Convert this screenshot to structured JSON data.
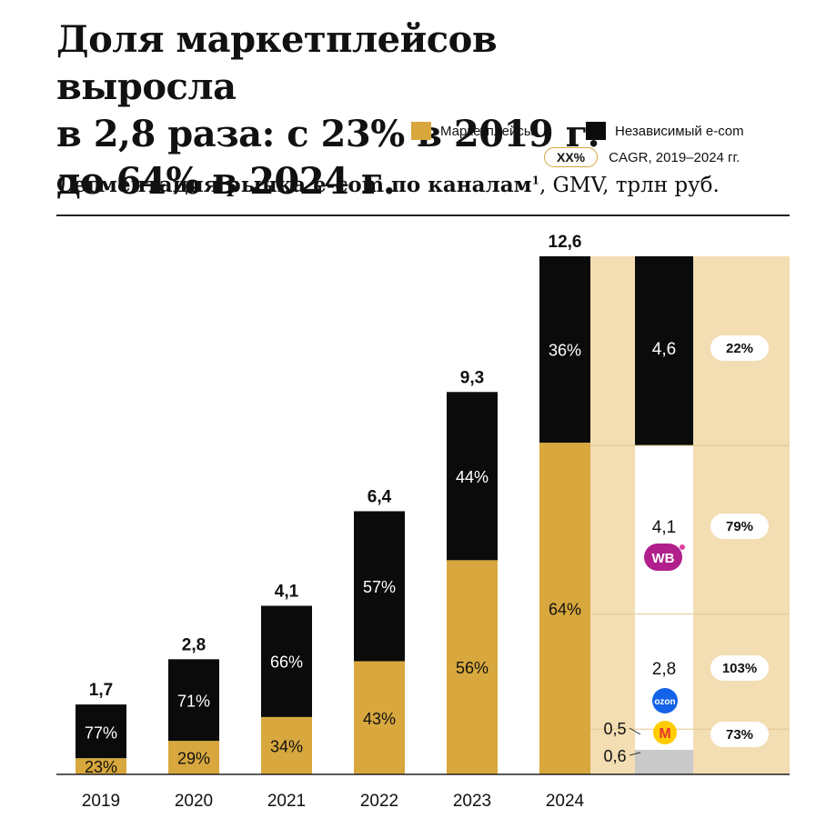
{
  "header": {
    "title_line1": "Доля маркетплейсов выросла",
    "title_line2": "в 2,8 раза: с 23% в 2019 г.",
    "title_line3": "до 64% в 2024 г.",
    "subtitle_bold": "Сегментация рынка e-com по каналам",
    "subtitle_sup": "1",
    "subtitle_rest": ", GMV, трлн руб."
  },
  "legend": {
    "marketplaces": "Маркетплейсы",
    "independent": "Независимый e-com",
    "cagr_pill": "XX%",
    "cagr_text": "CAGR, 2019–2024 гг."
  },
  "colors": {
    "marketplace": "#d8a83e",
    "independent": "#0b0b0b",
    "panel_bg": "#f3ddb3",
    "other_mp": "#c9c9c9"
  },
  "chart_data": {
    "type": "bar",
    "stacked": true,
    "categories": [
      "2019",
      "2020",
      "2021",
      "2022",
      "2023",
      "2024"
    ],
    "totals": [
      "1,7",
      "2,8",
      "4,1",
      "6,4",
      "9,3",
      "12,6"
    ],
    "total_values": [
      1.7,
      2.8,
      4.1,
      6.4,
      9.3,
      12.6
    ],
    "marketplace_share": [
      23,
      29,
      34,
      43,
      56,
      64
    ],
    "independent_share": [
      77,
      71,
      66,
      57,
      44,
      36
    ],
    "marketplace_labels": [
      "23%",
      "29%",
      "34%",
      "43%",
      "56%",
      "64%"
    ],
    "independent_labels": [
      "77%",
      "71%",
      "66%",
      "57%",
      "44%",
      "36%"
    ],
    "breakdown_2024": [
      {
        "segment": "other",
        "value": 0.6,
        "label": "0,6",
        "cagr": ""
      },
      {
        "segment": "yandex-market",
        "value": 0.5,
        "label": "0,5",
        "cagr": "73%"
      },
      {
        "segment": "ozon",
        "value": 2.8,
        "label": "2,8",
        "cagr": "103%"
      },
      {
        "segment": "wildberries",
        "value": 4.1,
        "label": "4,1",
        "cagr": "79%"
      },
      {
        "segment": "independent",
        "value": 4.6,
        "label": "4,6",
        "cagr": "22%"
      }
    ],
    "logos": {
      "wildberries": "WB",
      "ozon": "ozon",
      "yandex": "М"
    }
  }
}
